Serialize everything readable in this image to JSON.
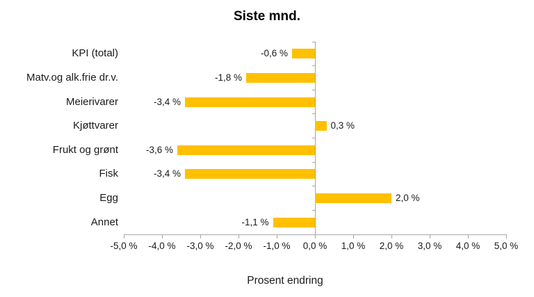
{
  "chart_data": {
    "type": "bar",
    "orientation": "horizontal",
    "title": "Siste mnd.",
    "xlabel": "Prosent endring",
    "categories": [
      "KPI (total)",
      "Matv.og alk.frie dr.v.",
      "Meierivarer",
      "Kjøttvarer",
      "Frukt og grønt",
      "Fisk",
      "Egg",
      "Annet"
    ],
    "values": [
      -0.6,
      -1.8,
      -3.4,
      0.3,
      -3.6,
      -3.4,
      2.0,
      -1.1
    ],
    "value_labels": [
      "-0,6 %",
      "-1,8 %",
      "-3,4 %",
      "0,3 %",
      "-3,6 %",
      "-3,4 %",
      "2,0 %",
      "-1,1 %"
    ],
    "xlim": [
      -5,
      5
    ],
    "xticks": [
      -5,
      -4,
      -3,
      -2,
      -1,
      0,
      1,
      2,
      3,
      4,
      5
    ],
    "xtick_labels": [
      "-5,0 %",
      "-4,0 %",
      "-3,0 %",
      "-2,0 %",
      "-1,0 %",
      "0,0 %",
      "1,0 %",
      "2,0 %",
      "3,0 %",
      "4,0 %",
      "5,0 %"
    ],
    "bar_color": "#FFC000",
    "axis_color": "#A6A6A6",
    "text_color": "#1A1A1A",
    "grid": false,
    "legend": null
  }
}
